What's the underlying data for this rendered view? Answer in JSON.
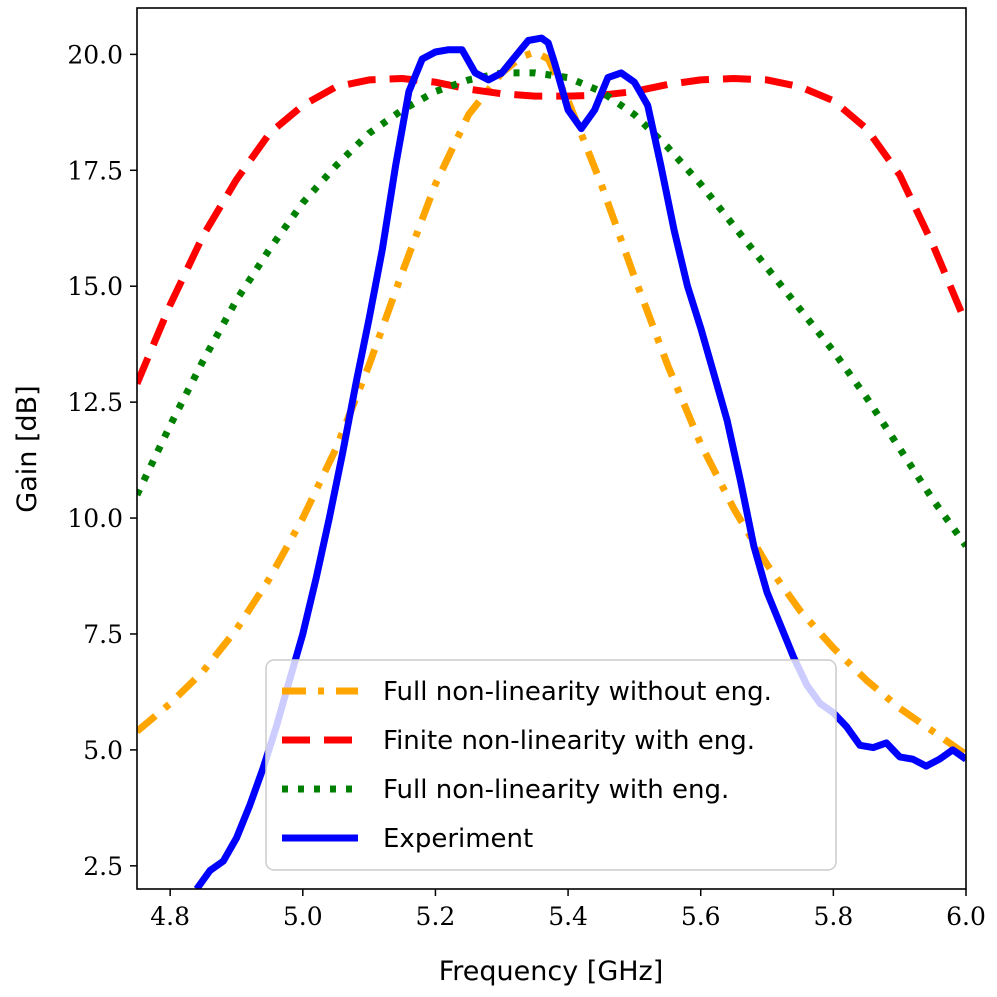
{
  "chart_data": {
    "type": "line",
    "xlabel": "Frequency [GHz]",
    "ylabel": "Gain [dB]",
    "xlim": [
      4.75,
      6.0
    ],
    "ylim": [
      2.0,
      21.0
    ],
    "xticks": [
      4.8,
      5.0,
      5.2,
      5.4,
      5.6,
      5.8,
      6.0
    ],
    "xtick_labels": [
      "4.8",
      "5.0",
      "5.2",
      "5.4",
      "5.6",
      "5.8",
      "6.0"
    ],
    "yticks": [
      2.5,
      5.0,
      7.5,
      10.0,
      12.5,
      15.0,
      17.5,
      20.0
    ],
    "ytick_labels": [
      "2.5",
      "5.0",
      "7.5",
      "10.0",
      "12.5",
      "15.0",
      "17.5",
      "20.0"
    ],
    "grid": false,
    "legend_position": "lower-center",
    "series": [
      {
        "name": "Full non-linearity without eng.",
        "color": "#FFA500",
        "style": "dashdot",
        "x": [
          4.75,
          4.8,
          4.85,
          4.9,
          4.95,
          5.0,
          5.05,
          5.1,
          5.15,
          5.2,
          5.25,
          5.3,
          5.33,
          5.35,
          5.37,
          5.4,
          5.45,
          5.5,
          5.55,
          5.6,
          5.65,
          5.7,
          5.75,
          5.8,
          5.85,
          5.9,
          5.95,
          6.0
        ],
        "y": [
          5.4,
          6.0,
          6.7,
          7.6,
          8.7,
          10.0,
          11.5,
          13.3,
          15.3,
          17.2,
          18.7,
          19.6,
          19.95,
          20.05,
          19.9,
          19.0,
          17.2,
          15.2,
          13.3,
          11.6,
          10.2,
          9.0,
          8.0,
          7.2,
          6.5,
          5.9,
          5.4,
          4.9
        ]
      },
      {
        "name": "Finite non-linearity with eng.",
        "color": "#FF0000",
        "style": "dashed",
        "x": [
          4.75,
          4.8,
          4.85,
          4.9,
          4.95,
          5.0,
          5.05,
          5.1,
          5.15,
          5.2,
          5.25,
          5.3,
          5.35,
          5.4,
          5.45,
          5.5,
          5.55,
          5.6,
          5.65,
          5.7,
          5.75,
          5.8,
          5.85,
          5.9,
          5.95,
          6.0
        ],
        "y": [
          12.9,
          14.6,
          16.1,
          17.3,
          18.3,
          18.9,
          19.3,
          19.45,
          19.48,
          19.4,
          19.25,
          19.15,
          19.1,
          19.1,
          19.12,
          19.2,
          19.35,
          19.45,
          19.48,
          19.45,
          19.3,
          19.0,
          18.4,
          17.4,
          15.9,
          14.2
        ]
      },
      {
        "name": "Full non-linearity with eng.",
        "color": "#008000",
        "style": "dotted",
        "x": [
          4.75,
          4.8,
          4.85,
          4.9,
          4.95,
          5.0,
          5.05,
          5.1,
          5.15,
          5.2,
          5.25,
          5.3,
          5.35,
          5.4,
          5.45,
          5.5,
          5.55,
          5.6,
          5.65,
          5.7,
          5.75,
          5.8,
          5.85,
          5.9,
          5.95,
          6.0
        ],
        "y": [
          10.5,
          12.0,
          13.4,
          14.7,
          15.8,
          16.8,
          17.6,
          18.3,
          18.8,
          19.2,
          19.45,
          19.6,
          19.6,
          19.5,
          19.2,
          18.7,
          18.0,
          17.2,
          16.3,
          15.4,
          14.5,
          13.6,
          12.6,
          11.5,
          10.4,
          9.4
        ]
      },
      {
        "name": "Experiment",
        "color": "#0000FF",
        "style": "solid",
        "x": [
          4.84,
          4.86,
          4.88,
          4.9,
          4.92,
          4.94,
          4.96,
          4.98,
          5.0,
          5.02,
          5.04,
          5.06,
          5.08,
          5.1,
          5.12,
          5.14,
          5.16,
          5.18,
          5.2,
          5.22,
          5.24,
          5.26,
          5.28,
          5.3,
          5.32,
          5.34,
          5.36,
          5.37,
          5.38,
          5.4,
          5.42,
          5.44,
          5.46,
          5.48,
          5.5,
          5.52,
          5.54,
          5.56,
          5.58,
          5.6,
          5.62,
          5.64,
          5.66,
          5.68,
          5.7,
          5.72,
          5.74,
          5.76,
          5.78,
          5.8,
          5.82,
          5.84,
          5.86,
          5.88,
          5.9,
          5.92,
          5.94,
          5.96,
          5.98,
          6.0
        ],
        "y": [
          2.0,
          2.4,
          2.6,
          3.1,
          3.8,
          4.6,
          5.5,
          6.5,
          7.5,
          8.7,
          10.0,
          11.4,
          12.9,
          14.3,
          15.8,
          17.6,
          19.2,
          19.9,
          20.05,
          20.1,
          20.1,
          19.6,
          19.45,
          19.6,
          19.95,
          20.3,
          20.35,
          20.25,
          19.8,
          18.8,
          18.4,
          18.8,
          19.5,
          19.6,
          19.4,
          18.9,
          17.6,
          16.2,
          15.0,
          14.1,
          13.1,
          12.1,
          10.8,
          9.4,
          8.4,
          7.7,
          7.0,
          6.4,
          6.0,
          5.8,
          5.5,
          5.1,
          5.05,
          5.15,
          4.85,
          4.8,
          4.65,
          4.8,
          5.0,
          4.8
        ]
      }
    ]
  }
}
